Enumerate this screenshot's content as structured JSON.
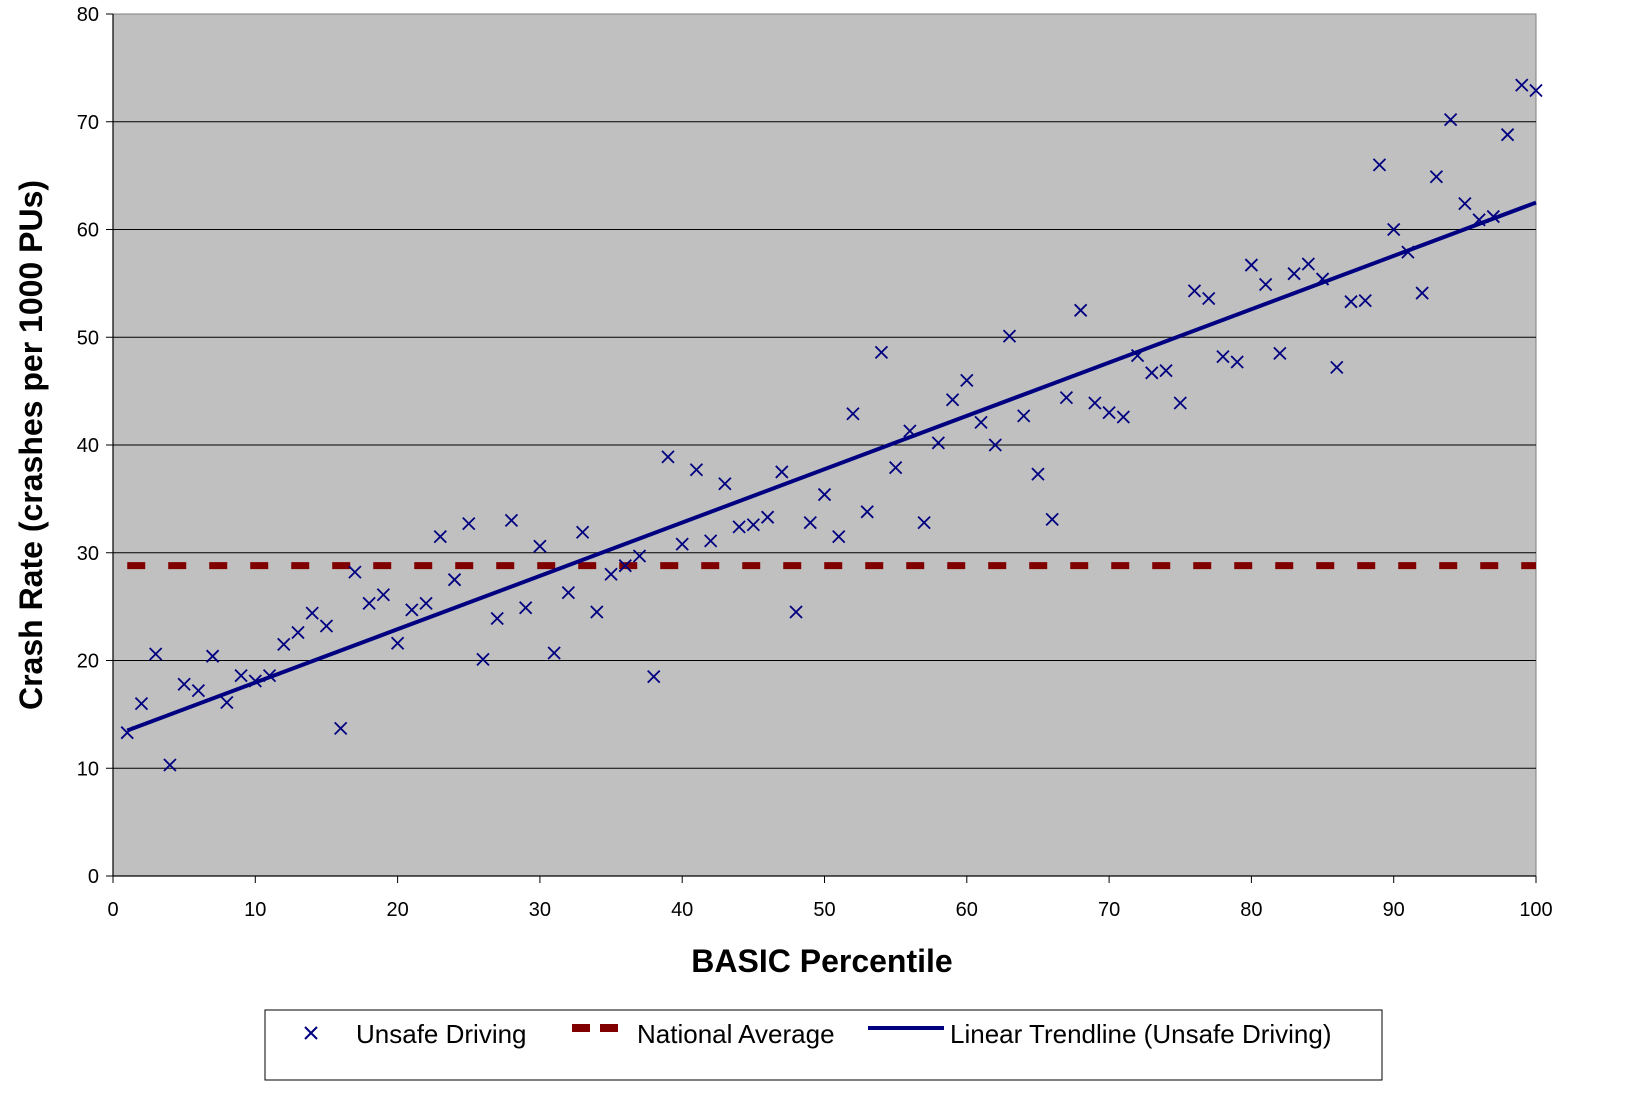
{
  "chart_data": {
    "type": "scatter",
    "title": "",
    "xlabel": "BASIC Percentile",
    "ylabel": "Crash Rate (crashes per 1000 PUs)",
    "xlim": [
      0,
      100
    ],
    "ylim": [
      0,
      80
    ],
    "x_ticks": [
      0,
      10,
      20,
      30,
      40,
      50,
      60,
      70,
      80,
      90,
      100
    ],
    "y_ticks": [
      0,
      10,
      20,
      30,
      40,
      50,
      60,
      70,
      80
    ],
    "grid": "horizontal",
    "legend_position": "bottom",
    "plot_background": "#c0c0c0",
    "series": [
      {
        "name": "Unsafe Driving",
        "kind": "scatter",
        "marker": "x",
        "color": "#000080",
        "points": [
          [
            1,
            13.3
          ],
          [
            2,
            16.0
          ],
          [
            3,
            20.6
          ],
          [
            4,
            10.3
          ],
          [
            5,
            17.8
          ],
          [
            6,
            17.2
          ],
          [
            7,
            20.4
          ],
          [
            8,
            16.1
          ],
          [
            9,
            18.6
          ],
          [
            10,
            18.1
          ],
          [
            11,
            18.6
          ],
          [
            12,
            21.5
          ],
          [
            13,
            22.6
          ],
          [
            14,
            24.4
          ],
          [
            15,
            23.2
          ],
          [
            16,
            13.7
          ],
          [
            17,
            28.2
          ],
          [
            18,
            25.3
          ],
          [
            19,
            26.1
          ],
          [
            20,
            21.6
          ],
          [
            21,
            24.7
          ],
          [
            22,
            25.3
          ],
          [
            23,
            31.5
          ],
          [
            24,
            27.5
          ],
          [
            25,
            32.7
          ],
          [
            26,
            20.1
          ],
          [
            27,
            23.9
          ],
          [
            28,
            33.0
          ],
          [
            29,
            24.9
          ],
          [
            30,
            30.6
          ],
          [
            31,
            20.7
          ],
          [
            32,
            26.3
          ],
          [
            33,
            31.9
          ],
          [
            34,
            24.5
          ],
          [
            35,
            28.0
          ],
          [
            36,
            28.8
          ],
          [
            37,
            29.7
          ],
          [
            38,
            18.5
          ],
          [
            39,
            38.9
          ],
          [
            40,
            30.8
          ],
          [
            41,
            37.7
          ],
          [
            42,
            31.1
          ],
          [
            43,
            36.4
          ],
          [
            44,
            32.4
          ],
          [
            45,
            32.6
          ],
          [
            46,
            33.3
          ],
          [
            47,
            37.5
          ],
          [
            48,
            24.5
          ],
          [
            49,
            32.8
          ],
          [
            50,
            35.4
          ],
          [
            51,
            31.5
          ],
          [
            52,
            42.9
          ],
          [
            53,
            33.8
          ],
          [
            54,
            48.6
          ],
          [
            55,
            37.9
          ],
          [
            56,
            41.3
          ],
          [
            57,
            32.8
          ],
          [
            58,
            40.2
          ],
          [
            59,
            44.2
          ],
          [
            60,
            46.0
          ],
          [
            61,
            42.1
          ],
          [
            62,
            40.0
          ],
          [
            63,
            50.1
          ],
          [
            64,
            42.7
          ],
          [
            65,
            37.3
          ],
          [
            66,
            33.1
          ],
          [
            67,
            44.4
          ],
          [
            68,
            52.5
          ],
          [
            69,
            43.9
          ],
          [
            70,
            43.0
          ],
          [
            71,
            42.6
          ],
          [
            72,
            48.3
          ],
          [
            73,
            46.7
          ],
          [
            74,
            46.9
          ],
          [
            75,
            43.9
          ],
          [
            76,
            54.3
          ],
          [
            77,
            53.6
          ],
          [
            78,
            48.2
          ],
          [
            79,
            47.7
          ],
          [
            80,
            56.7
          ],
          [
            81,
            54.9
          ],
          [
            82,
            48.5
          ],
          [
            83,
            55.9
          ],
          [
            84,
            56.8
          ],
          [
            85,
            55.4
          ],
          [
            86,
            47.2
          ],
          [
            87,
            53.3
          ],
          [
            88,
            53.4
          ],
          [
            89,
            66.0
          ],
          [
            90,
            60.0
          ],
          [
            91,
            57.9
          ],
          [
            92,
            54.1
          ],
          [
            93,
            64.9
          ],
          [
            94,
            70.2
          ],
          [
            95,
            62.4
          ],
          [
            96,
            60.9
          ],
          [
            97,
            61.2
          ],
          [
            98,
            68.8
          ],
          [
            99,
            73.4
          ],
          [
            100,
            72.9
          ]
        ]
      },
      {
        "name": "National Average",
        "kind": "line",
        "style": "dashed",
        "color": "#800000",
        "x": [
          1,
          100
        ],
        "y": [
          28.8,
          28.8
        ]
      },
      {
        "name": "Linear Trendline (Unsafe Driving)",
        "kind": "line",
        "style": "solid",
        "color": "#000080",
        "x": [
          1,
          100
        ],
        "y": [
          13.5,
          62.5
        ]
      }
    ]
  }
}
